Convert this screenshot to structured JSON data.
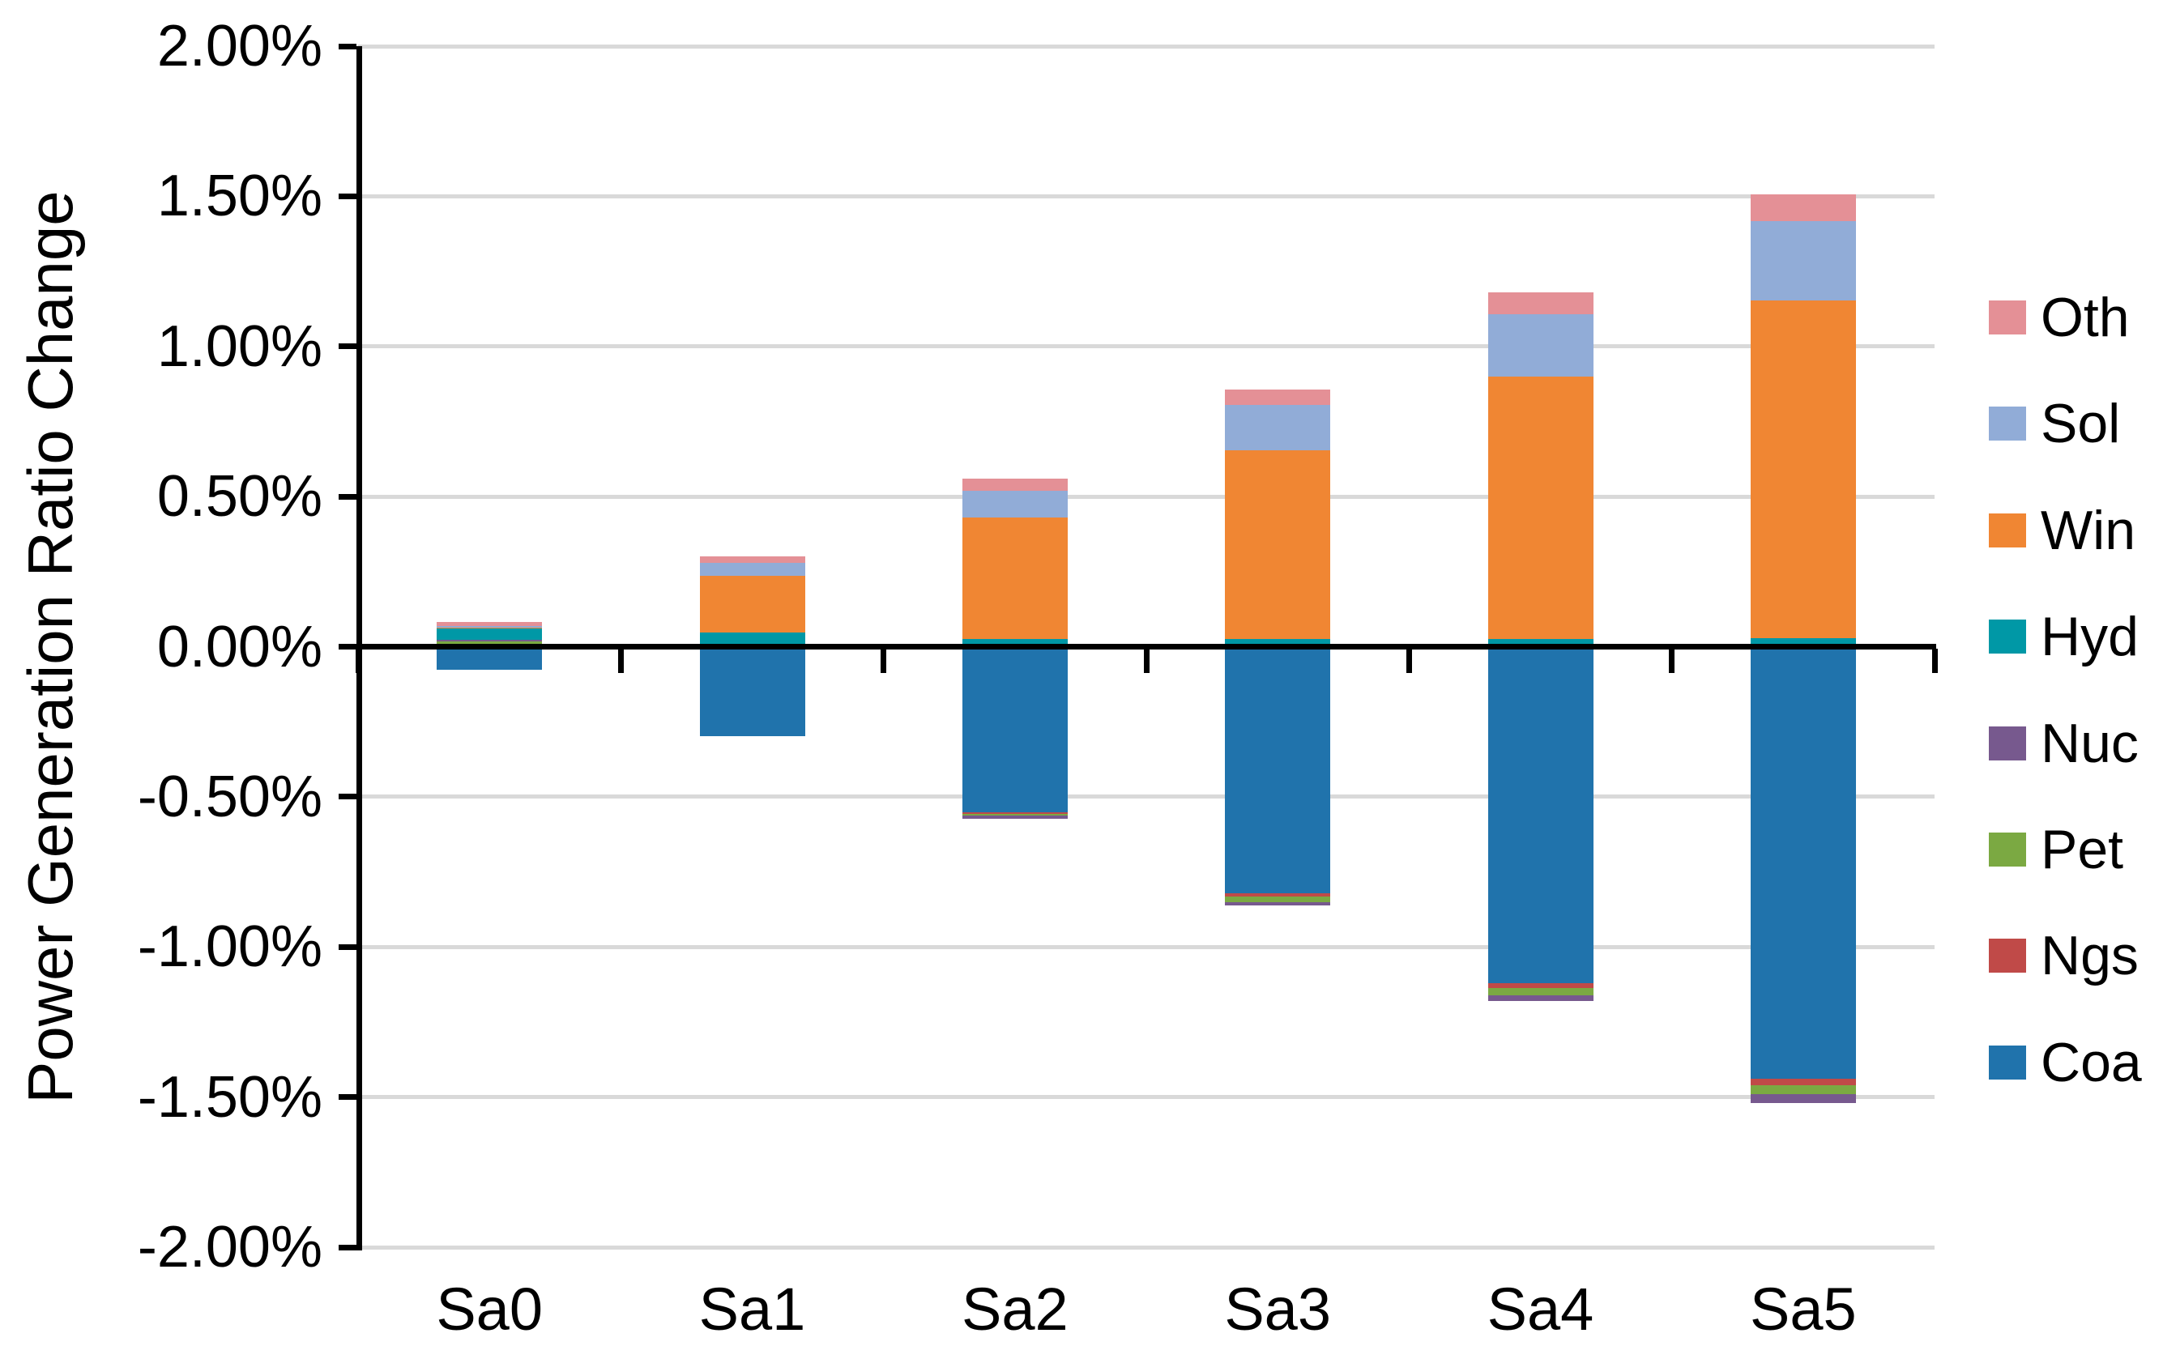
{
  "chart_data": {
    "type": "bar",
    "stacked": true,
    "title": "",
    "ylabel": "Power Generation Ratio Change",
    "xlabel": "",
    "categories": [
      "Sa0",
      "Sa1",
      "Sa2",
      "Sa3",
      "Sa4",
      "Sa5"
    ],
    "y_tick_labels": [
      "2.00%",
      "1.50%",
      "1.00%",
      "0.50%",
      "0.00%",
      "-0.50%",
      "-1.00%",
      "-1.50%",
      "-2.00%"
    ],
    "y_tick_values": [
      2.0,
      1.5,
      1.0,
      0.5,
      0.0,
      -0.5,
      -1.0,
      -1.5,
      -2.0
    ],
    "ylim": [
      -2.0,
      2.0
    ],
    "grid": true,
    "grid_step": 0.5,
    "value_unit": "percent",
    "legend_position": "right",
    "legend_order": [
      "Oth",
      "Sol",
      "Win",
      "Hyd",
      "Nuc",
      "Pet",
      "Ngs",
      "Coa"
    ],
    "series": [
      {
        "name": "Coa",
        "color": "#2073AC",
        "values": [
          -0.078,
          -0.298,
          -0.551,
          -0.822,
          -1.12,
          -1.44
        ]
      },
      {
        "name": "Ngs",
        "color": "#C04A48",
        "values": [
          0.0,
          0.0,
          -0.005,
          -0.011,
          -0.016,
          -0.021
        ]
      },
      {
        "name": "Pet",
        "color": "#7BA942",
        "values": [
          0.017,
          0.002,
          -0.006,
          -0.017,
          -0.025,
          -0.029
        ]
      },
      {
        "name": "Nuc",
        "color": "#77598E",
        "values": [
          0.007,
          0.002,
          -0.011,
          -0.011,
          -0.018,
          -0.03
        ]
      },
      {
        "name": "Hyd",
        "color": "#0098A6",
        "values": [
          0.037,
          0.042,
          0.025,
          0.026,
          0.026,
          0.027
        ]
      },
      {
        "name": "Win",
        "color": "#F08633",
        "values": [
          0.005,
          0.189,
          0.405,
          0.628,
          0.874,
          1.125
        ]
      },
      {
        "name": "Sol",
        "color": "#91ACD7",
        "values": [
          0.002,
          0.045,
          0.09,
          0.151,
          0.207,
          0.265
        ]
      },
      {
        "name": "Oth",
        "color": "#E49096",
        "values": [
          0.013,
          0.022,
          0.041,
          0.051,
          0.072,
          0.09
        ]
      }
    ],
    "colors": {
      "grid": "#D9D9D9",
      "axis": "#000000",
      "text": "#000000",
      "background": "#FFFFFF"
    }
  }
}
